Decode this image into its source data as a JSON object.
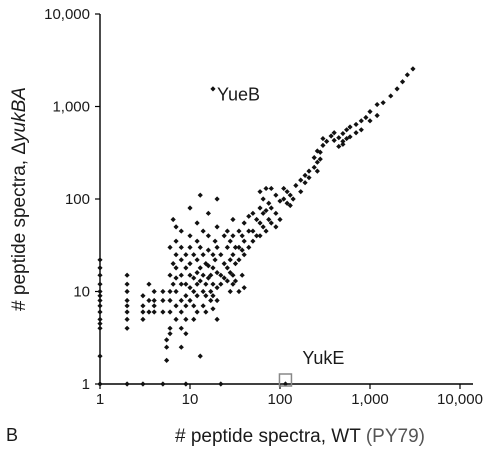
{
  "panel_label": "B",
  "chart_data": {
    "type": "scatter",
    "xlabel": "# peptide spectra, WT",
    "xlabel_suffix": "(PY79)",
    "ylabel_prefix": "# peptide spectra, Δ",
    "ylabel_italic": "yukBA",
    "x_scale": "log",
    "y_scale": "log",
    "xlim": [
      1,
      10000
    ],
    "ylim": [
      1,
      10000
    ],
    "x_ticks": [
      1,
      10,
      100,
      1000,
      10000
    ],
    "x_tick_labels": [
      "1",
      "10",
      "100",
      "1,000",
      "10,000"
    ],
    "y_ticks": [
      1,
      10,
      100,
      1000,
      10000
    ],
    "y_tick_labels": [
      "1",
      "10",
      "100",
      "1,000",
      "10,000"
    ],
    "grid": false,
    "legend": "none",
    "colors": {
      "points": "#111111",
      "axes": "#000000",
      "highlight_box": "#888888"
    },
    "annotations": [
      {
        "text": "YueB",
        "x": 18,
        "y": 1350
      },
      {
        "text": "YukE",
        "x": 160,
        "y": 1.9
      }
    ],
    "highlight": {
      "label": "YukE",
      "x": 115,
      "y": 0.95
    },
    "points": [
      [
        1,
        22
      ],
      [
        1,
        18
      ],
      [
        1,
        15
      ],
      [
        1,
        12
      ],
      [
        1,
        10
      ],
      [
        1,
        9
      ],
      [
        1,
        8
      ],
      [
        1,
        7
      ],
      [
        1,
        6
      ],
      [
        1,
        5
      ],
      [
        1,
        4.5
      ],
      [
        1,
        4
      ],
      [
        1,
        2
      ],
      [
        1,
        1
      ],
      [
        2,
        15
      ],
      [
        2,
        12
      ],
      [
        2,
        10
      ],
      [
        2,
        8
      ],
      [
        2,
        7
      ],
      [
        2,
        6
      ],
      [
        2,
        5
      ],
      [
        2,
        4
      ],
      [
        2,
        1
      ],
      [
        3,
        9
      ],
      [
        3,
        7
      ],
      [
        3,
        6
      ],
      [
        3,
        5
      ],
      [
        3,
        1
      ],
      [
        3.5,
        12
      ],
      [
        3.5,
        8
      ],
      [
        3.5,
        6
      ],
      [
        4,
        10
      ],
      [
        4,
        8
      ],
      [
        4,
        7
      ],
      [
        4,
        6
      ],
      [
        5,
        10
      ],
      [
        5,
        8
      ],
      [
        5,
        6
      ],
      [
        5,
        1
      ],
      [
        5.5,
        3
      ],
      [
        5.5,
        2.5
      ],
      [
        5.5,
        1.8
      ],
      [
        6,
        30
      ],
      [
        6,
        15
      ],
      [
        6,
        10
      ],
      [
        6,
        8
      ],
      [
        6,
        6
      ],
      [
        6,
        4
      ],
      [
        6,
        3.5
      ],
      [
        6.5,
        60
      ],
      [
        6.5,
        20
      ],
      [
        6.5,
        12
      ],
      [
        7,
        50
      ],
      [
        7,
        35
      ],
      [
        7,
        25
      ],
      [
        7,
        18
      ],
      [
        7,
        14
      ],
      [
        7,
        10
      ],
      [
        7,
        7
      ],
      [
        7,
        5
      ],
      [
        8,
        45
      ],
      [
        8,
        30
      ],
      [
        8,
        22
      ],
      [
        8,
        15
      ],
      [
        8,
        12
      ],
      [
        8,
        8
      ],
      [
        8,
        6
      ],
      [
        8,
        4
      ],
      [
        8,
        2.5
      ],
      [
        9,
        25
      ],
      [
        9,
        18
      ],
      [
        9,
        12
      ],
      [
        9,
        9
      ],
      [
        9,
        7
      ],
      [
        9,
        5
      ],
      [
        9,
        3.5
      ],
      [
        9,
        1
      ],
      [
        10,
        80
      ],
      [
        10,
        40
      ],
      [
        10,
        30
      ],
      [
        10,
        20
      ],
      [
        10,
        15
      ],
      [
        10,
        11
      ],
      [
        10,
        8
      ],
      [
        11,
        25
      ],
      [
        11,
        14
      ],
      [
        11,
        10
      ],
      [
        11,
        7
      ],
      [
        11,
        5
      ],
      [
        12,
        55
      ],
      [
        12,
        35
      ],
      [
        12,
        22
      ],
      [
        12,
        16
      ],
      [
        12,
        12
      ],
      [
        12,
        9
      ],
      [
        12,
        6
      ],
      [
        13,
        110
      ],
      [
        13,
        30
      ],
      [
        13,
        18
      ],
      [
        13,
        13
      ],
      [
        13,
        2
      ],
      [
        14,
        45
      ],
      [
        14,
        25
      ],
      [
        14,
        15
      ],
      [
        14,
        10
      ],
      [
        14,
        7
      ],
      [
        15,
        20
      ],
      [
        15,
        12
      ],
      [
        15,
        9
      ],
      [
        15,
        6
      ],
      [
        16,
        70
      ],
      [
        16,
        40
      ],
      [
        16,
        28
      ],
      [
        16,
        19
      ],
      [
        16,
        14
      ],
      [
        17,
        15
      ],
      [
        17,
        10
      ],
      [
        17,
        8
      ],
      [
        18,
        25
      ],
      [
        18,
        18
      ],
      [
        18,
        12
      ],
      [
        18,
        9
      ],
      [
        18,
        6.5
      ],
      [
        19,
        35
      ],
      [
        19,
        22
      ],
      [
        20,
        100
      ],
      [
        20,
        50
      ],
      [
        20,
        30
      ],
      [
        20,
        16
      ],
      [
        20,
        11
      ],
      [
        20,
        8
      ],
      [
        20,
        5
      ],
      [
        22,
        25
      ],
      [
        22,
        15
      ],
      [
        22,
        12
      ],
      [
        22,
        1
      ],
      [
        24,
        40
      ],
      [
        24,
        20
      ],
      [
        24,
        14
      ],
      [
        26,
        45
      ],
      [
        26,
        30
      ],
      [
        26,
        18
      ],
      [
        26,
        13
      ],
      [
        28,
        35
      ],
      [
        28,
        22
      ],
      [
        28,
        16
      ],
      [
        28,
        10
      ],
      [
        30,
        60
      ],
      [
        30,
        40
      ],
      [
        30,
        25
      ],
      [
        30,
        15
      ],
      [
        30,
        12
      ],
      [
        32,
        30
      ],
      [
        32,
        20
      ],
      [
        32,
        13
      ],
      [
        35,
        45
      ],
      [
        35,
        30
      ],
      [
        35,
        22
      ],
      [
        35,
        10
      ],
      [
        38,
        40
      ],
      [
        38,
        28
      ],
      [
        38,
        15
      ],
      [
        40,
        55
      ],
      [
        40,
        35
      ],
      [
        40,
        25
      ],
      [
        40,
        11
      ],
      [
        45,
        65
      ],
      [
        45,
        45
      ],
      [
        45,
        30
      ],
      [
        50,
        70
      ],
      [
        50,
        45
      ],
      [
        50,
        35
      ],
      [
        55,
        60
      ],
      [
        55,
        40
      ],
      [
        60,
        120
      ],
      [
        60,
        80
      ],
      [
        60,
        55
      ],
      [
        60,
        40
      ],
      [
        65,
        100
      ],
      [
        65,
        70
      ],
      [
        65,
        50
      ],
      [
        70,
        130
      ],
      [
        70,
        75
      ],
      [
        70,
        45
      ],
      [
        75,
        90
      ],
      [
        75,
        60
      ],
      [
        80,
        130
      ],
      [
        80,
        80
      ],
      [
        80,
        55
      ],
      [
        90,
        110
      ],
      [
        90,
        70
      ],
      [
        90,
        50
      ],
      [
        100,
        95
      ],
      [
        100,
        60
      ],
      [
        110,
        130
      ],
      [
        110,
        100
      ],
      [
        120,
        120
      ],
      [
        120,
        90
      ],
      [
        130,
        110
      ],
      [
        130,
        85
      ],
      [
        140,
        100
      ],
      [
        150,
        140
      ],
      [
        170,
        160
      ],
      [
        170,
        120
      ],
      [
        190,
        180
      ],
      [
        190,
        150
      ],
      [
        210,
        200
      ],
      [
        210,
        170
      ],
      [
        240,
        280
      ],
      [
        240,
        220
      ],
      [
        260,
        330
      ],
      [
        260,
        250
      ],
      [
        260,
        200
      ],
      [
        280,
        270
      ],
      [
        280,
        320
      ],
      [
        300,
        380
      ],
      [
        300,
        450
      ],
      [
        330,
        420
      ],
      [
        370,
        480
      ],
      [
        400,
        520
      ],
      [
        400,
        430
      ],
      [
        450,
        460
      ],
      [
        450,
        370
      ],
      [
        500,
        510
      ],
      [
        500,
        420
      ],
      [
        500,
        390
      ],
      [
        550,
        560
      ],
      [
        550,
        450
      ],
      [
        600,
        600
      ],
      [
        600,
        470
      ],
      [
        700,
        640
      ],
      [
        700,
        520
      ],
      [
        800,
        700
      ],
      [
        800,
        560
      ],
      [
        900,
        760
      ],
      [
        1000,
        880
      ],
      [
        1000,
        700
      ],
      [
        1200,
        1050
      ],
      [
        1200,
        800
      ],
      [
        1400,
        1100
      ],
      [
        1700,
        1300
      ],
      [
        2000,
        1550
      ],
      [
        2300,
        1850
      ],
      [
        2600,
        2200
      ],
      [
        3000,
        2550
      ],
      [
        18,
        1550
      ],
      [
        115,
        0.9
      ]
    ]
  }
}
